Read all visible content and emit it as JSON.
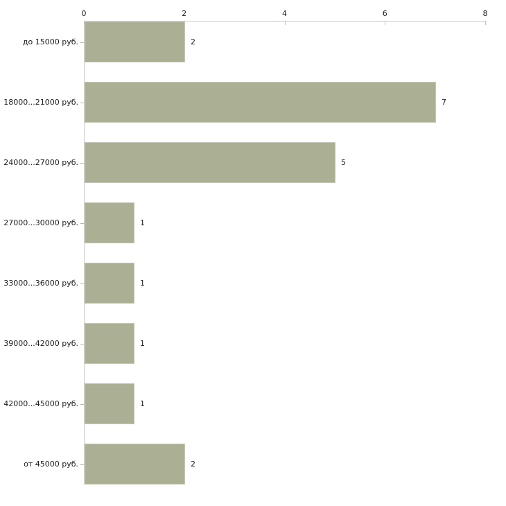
{
  "chart_data": {
    "type": "bar",
    "orientation": "horizontal",
    "title": "",
    "xlabel": "",
    "ylabel": "",
    "categories": [
      "до 15000 руб.",
      "18000...21000 руб.",
      "24000...27000 руб.",
      "27000...30000 руб.",
      "33000...36000 руб.",
      "39000...42000 руб.",
      "42000...45000 руб.",
      "от 45000 руб."
    ],
    "values": [
      2,
      7,
      5,
      1,
      1,
      1,
      1,
      2
    ],
    "value_labels": [
      "2",
      "7",
      "5",
      "1",
      "1",
      "1",
      "1",
      "2"
    ],
    "xlim": [
      0,
      8
    ],
    "x_ticks": [
      0,
      2,
      4,
      6,
      8
    ],
    "x_tick_labels": [
      "0",
      "2",
      "4",
      "6",
      "8"
    ],
    "axis_position": "top",
    "grid": false,
    "legend": false,
    "bar_color": "#abb095",
    "bar_border_color": "#c5c8b2",
    "axis_line_color": "#c6c6c6",
    "tick_color": "#c3c6a2",
    "background_color": "#ffffff",
    "text_color": "#1c1c1c"
  }
}
